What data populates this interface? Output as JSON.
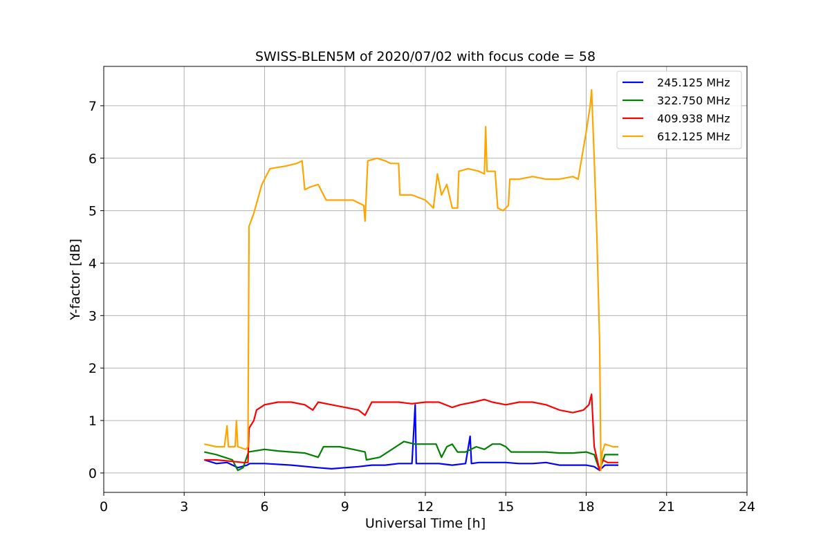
{
  "chart_data": {
    "type": "line",
    "title": "SWISS-BLEN5M of 2020/07/02 with focus code = 58",
    "xlabel": "Universal Time [h]",
    "ylabel": "Y-factor [dB]",
    "xlim": [
      0,
      24
    ],
    "ylim": [
      -0.37,
      7.75
    ],
    "xticks": [
      0,
      3,
      6,
      9,
      12,
      15,
      18,
      21,
      24
    ],
    "yticks": [
      0,
      1,
      2,
      3,
      4,
      5,
      6,
      7
    ],
    "grid": true,
    "legend_position": "top-right",
    "series": [
      {
        "name": "245.125 MHz",
        "color": "#0000ff",
        "points": [
          [
            3.75,
            0.25
          ],
          [
            4.2,
            0.18
          ],
          [
            4.6,
            0.2
          ],
          [
            5.0,
            0.1
          ],
          [
            5.35,
            0.15
          ],
          [
            5.45,
            0.18
          ],
          [
            6.0,
            0.18
          ],
          [
            7.0,
            0.15
          ],
          [
            8.0,
            0.1
          ],
          [
            8.5,
            0.08
          ],
          [
            9.0,
            0.1
          ],
          [
            9.5,
            0.12
          ],
          [
            10.0,
            0.15
          ],
          [
            10.5,
            0.15
          ],
          [
            11.0,
            0.18
          ],
          [
            11.5,
            0.18
          ],
          [
            11.62,
            1.3
          ],
          [
            11.66,
            0.18
          ],
          [
            12.0,
            0.18
          ],
          [
            12.5,
            0.18
          ],
          [
            13.0,
            0.15
          ],
          [
            13.5,
            0.18
          ],
          [
            13.67,
            0.7
          ],
          [
            13.72,
            0.18
          ],
          [
            14.0,
            0.2
          ],
          [
            14.5,
            0.2
          ],
          [
            15.0,
            0.2
          ],
          [
            15.5,
            0.18
          ],
          [
            16.0,
            0.18
          ],
          [
            16.5,
            0.2
          ],
          [
            17.0,
            0.15
          ],
          [
            17.5,
            0.15
          ],
          [
            18.0,
            0.15
          ],
          [
            18.3,
            0.12
          ],
          [
            18.5,
            0.05
          ],
          [
            18.7,
            0.15
          ],
          [
            19.0,
            0.15
          ],
          [
            19.2,
            0.15
          ]
        ]
      },
      {
        "name": "322.750 MHz",
        "color": "#008000",
        "points": [
          [
            3.75,
            0.4
          ],
          [
            4.2,
            0.35
          ],
          [
            4.8,
            0.25
          ],
          [
            5.0,
            0.05
          ],
          [
            5.2,
            0.1
          ],
          [
            5.4,
            0.4
          ],
          [
            6.0,
            0.45
          ],
          [
            6.5,
            0.42
          ],
          [
            7.0,
            0.4
          ],
          [
            7.5,
            0.38
          ],
          [
            8.0,
            0.3
          ],
          [
            8.2,
            0.5
          ],
          [
            8.8,
            0.5
          ],
          [
            9.3,
            0.45
          ],
          [
            9.75,
            0.4
          ],
          [
            9.8,
            0.25
          ],
          [
            10.3,
            0.3
          ],
          [
            10.6,
            0.4
          ],
          [
            10.9,
            0.5
          ],
          [
            11.2,
            0.6
          ],
          [
            11.6,
            0.55
          ],
          [
            12.0,
            0.55
          ],
          [
            12.4,
            0.55
          ],
          [
            12.6,
            0.3
          ],
          [
            12.8,
            0.5
          ],
          [
            13.0,
            0.55
          ],
          [
            13.2,
            0.4
          ],
          [
            13.5,
            0.4
          ],
          [
            13.9,
            0.5
          ],
          [
            14.2,
            0.45
          ],
          [
            14.5,
            0.55
          ],
          [
            14.8,
            0.55
          ],
          [
            15.0,
            0.5
          ],
          [
            15.2,
            0.4
          ],
          [
            15.6,
            0.4
          ],
          [
            16.0,
            0.4
          ],
          [
            16.5,
            0.4
          ],
          [
            17.0,
            0.38
          ],
          [
            17.5,
            0.38
          ],
          [
            18.0,
            0.4
          ],
          [
            18.3,
            0.35
          ],
          [
            18.5,
            0.05
          ],
          [
            18.7,
            0.35
          ],
          [
            19.0,
            0.35
          ],
          [
            19.2,
            0.35
          ]
        ]
      },
      {
        "name": "409.938 MHz",
        "color": "#ff0000",
        "points": [
          [
            3.75,
            0.25
          ],
          [
            4.2,
            0.25
          ],
          [
            4.8,
            0.22
          ],
          [
            5.2,
            0.2
          ],
          [
            5.38,
            0.2
          ],
          [
            5.42,
            0.85
          ],
          [
            5.6,
            1.0
          ],
          [
            5.7,
            1.2
          ],
          [
            6.0,
            1.3
          ],
          [
            6.5,
            1.35
          ],
          [
            7.0,
            1.35
          ],
          [
            7.5,
            1.3
          ],
          [
            7.8,
            1.2
          ],
          [
            8.0,
            1.35
          ],
          [
            8.5,
            1.3
          ],
          [
            9.0,
            1.25
          ],
          [
            9.5,
            1.2
          ],
          [
            9.75,
            1.1
          ],
          [
            10.0,
            1.35
          ],
          [
            10.5,
            1.35
          ],
          [
            11.0,
            1.35
          ],
          [
            11.5,
            1.32
          ],
          [
            12.0,
            1.35
          ],
          [
            12.5,
            1.35
          ],
          [
            13.0,
            1.25
          ],
          [
            13.3,
            1.3
          ],
          [
            13.8,
            1.35
          ],
          [
            14.2,
            1.4
          ],
          [
            14.5,
            1.35
          ],
          [
            15.0,
            1.3
          ],
          [
            15.5,
            1.35
          ],
          [
            16.0,
            1.35
          ],
          [
            16.5,
            1.3
          ],
          [
            17.0,
            1.2
          ],
          [
            17.5,
            1.15
          ],
          [
            17.9,
            1.2
          ],
          [
            18.1,
            1.3
          ],
          [
            18.2,
            1.5
          ],
          [
            18.3,
            0.5
          ],
          [
            18.5,
            0.05
          ],
          [
            18.6,
            0.25
          ],
          [
            18.8,
            0.2
          ],
          [
            19.2,
            0.2
          ]
        ]
      },
      {
        "name": "612.125 MHz",
        "color": "#ffa500",
        "points": [
          [
            3.75,
            0.55
          ],
          [
            4.2,
            0.5
          ],
          [
            4.5,
            0.5
          ],
          [
            4.6,
            0.9
          ],
          [
            4.65,
            0.5
          ],
          [
            4.9,
            0.5
          ],
          [
            4.95,
            1.0
          ],
          [
            5.0,
            0.5
          ],
          [
            5.3,
            0.45
          ],
          [
            5.38,
            0.5
          ],
          [
            5.42,
            4.7
          ],
          [
            5.6,
            4.95
          ],
          [
            5.9,
            5.5
          ],
          [
            6.2,
            5.8
          ],
          [
            6.8,
            5.85
          ],
          [
            7.2,
            5.9
          ],
          [
            7.4,
            5.95
          ],
          [
            7.5,
            5.4
          ],
          [
            7.7,
            5.45
          ],
          [
            8.0,
            5.5
          ],
          [
            8.3,
            5.2
          ],
          [
            8.8,
            5.2
          ],
          [
            9.3,
            5.2
          ],
          [
            9.7,
            5.1
          ],
          [
            9.75,
            4.8
          ],
          [
            9.85,
            5.95
          ],
          [
            10.2,
            6.0
          ],
          [
            10.5,
            5.95
          ],
          [
            10.7,
            5.9
          ],
          [
            11.0,
            5.9
          ],
          [
            11.05,
            5.3
          ],
          [
            11.5,
            5.3
          ],
          [
            12.0,
            5.2
          ],
          [
            12.3,
            5.05
          ],
          [
            12.45,
            5.7
          ],
          [
            12.6,
            5.3
          ],
          [
            12.8,
            5.5
          ],
          [
            13.0,
            5.05
          ],
          [
            13.2,
            5.05
          ],
          [
            13.25,
            5.75
          ],
          [
            13.6,
            5.8
          ],
          [
            14.0,
            5.75
          ],
          [
            14.2,
            5.7
          ],
          [
            14.25,
            6.6
          ],
          [
            14.3,
            5.75
          ],
          [
            14.6,
            5.75
          ],
          [
            14.7,
            5.05
          ],
          [
            14.9,
            5.0
          ],
          [
            15.1,
            5.1
          ],
          [
            15.15,
            5.6
          ],
          [
            15.5,
            5.6
          ],
          [
            16.0,
            5.65
          ],
          [
            16.5,
            5.6
          ],
          [
            17.0,
            5.6
          ],
          [
            17.5,
            5.65
          ],
          [
            17.7,
            5.6
          ],
          [
            17.9,
            6.2
          ],
          [
            18.0,
            6.5
          ],
          [
            18.15,
            7.0
          ],
          [
            18.2,
            7.3
          ],
          [
            18.3,
            6.0
          ],
          [
            18.4,
            4.5
          ],
          [
            18.5,
            2.5
          ],
          [
            18.55,
            0.05
          ],
          [
            18.6,
            0.4
          ],
          [
            18.7,
            0.55
          ],
          [
            19.0,
            0.5
          ],
          [
            19.2,
            0.5
          ]
        ]
      }
    ]
  }
}
